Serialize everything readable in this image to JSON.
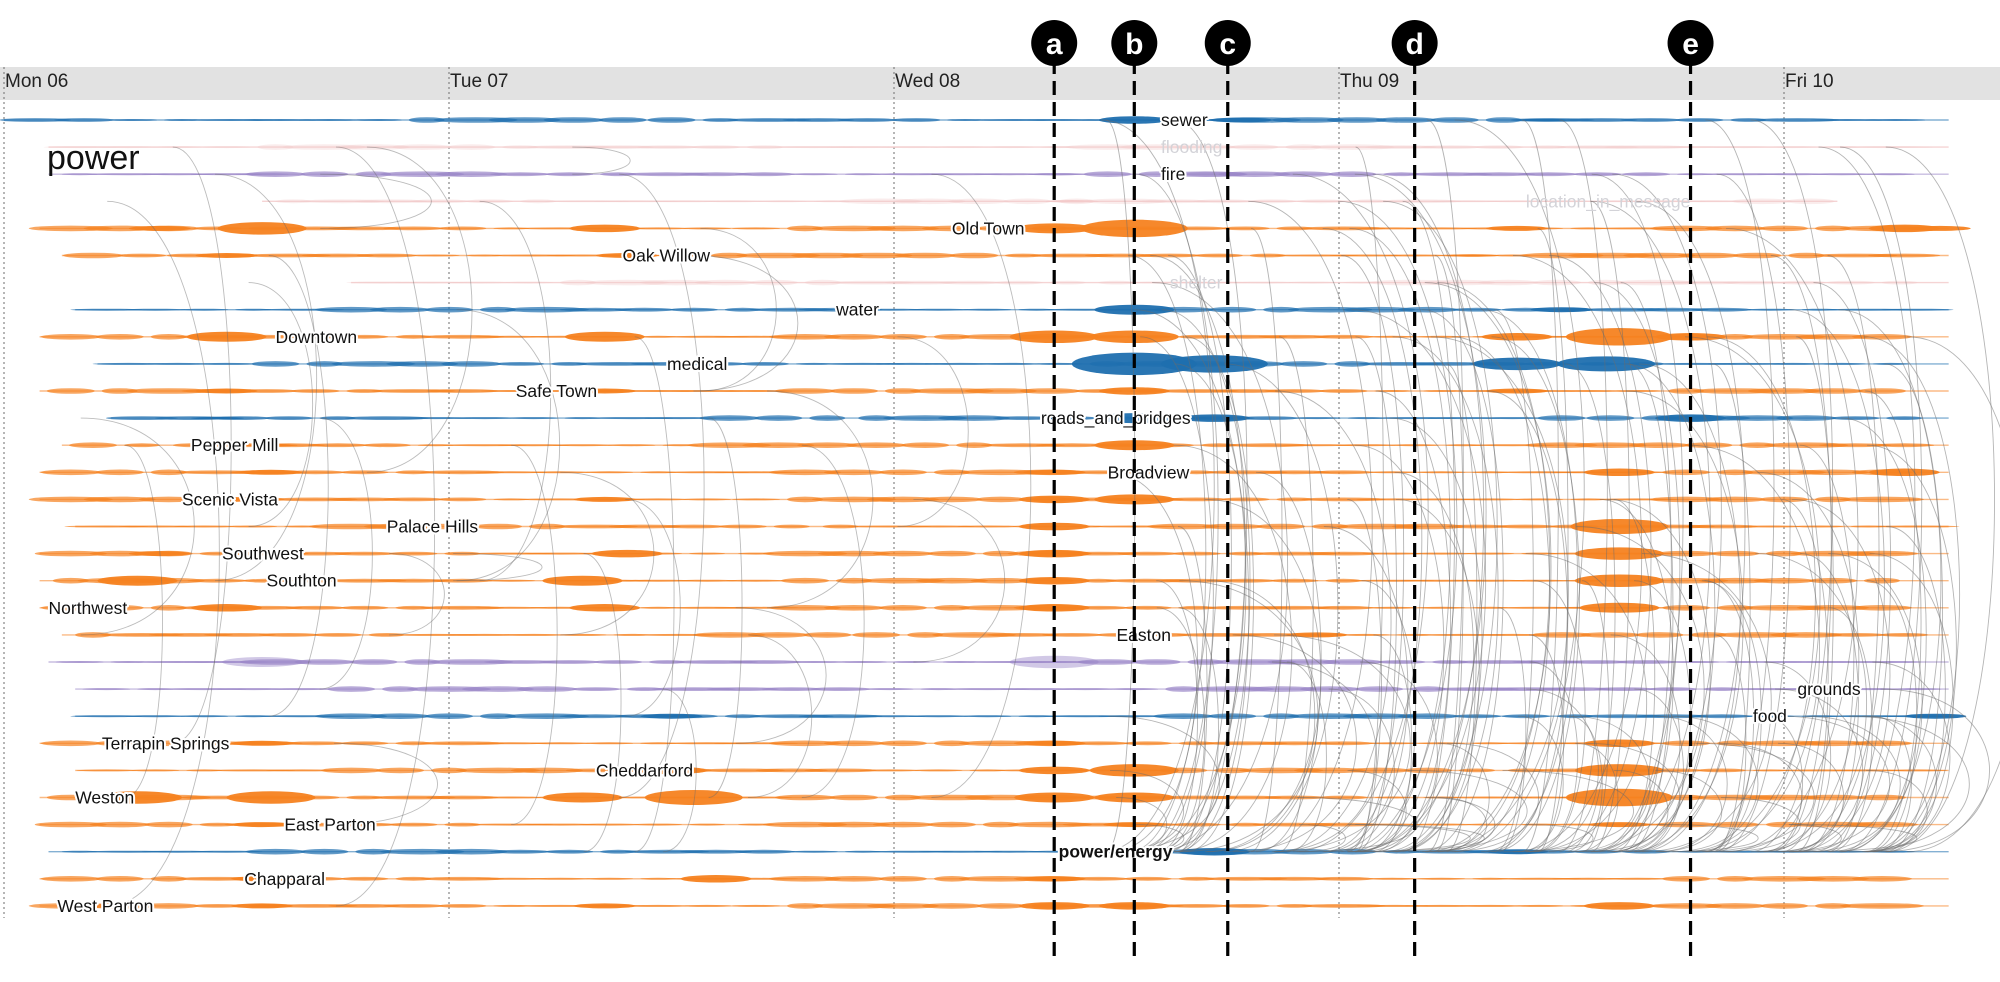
{
  "chart_data": {
    "type": "timeline",
    "title": "power",
    "days": [
      "Mon 06",
      "Tue 07",
      "Wed 08",
      "Thu 09",
      "Fri 10"
    ],
    "colors": {
      "location": "#f58220",
      "topic": "#1f6faf",
      "other": "#9a86c8",
      "faded": "#f2c9c9",
      "arc": "#6b6b6b",
      "header_band": "#e2e2e2",
      "marker": "#000000"
    },
    "event_markers": [
      {
        "label": "a",
        "day": 2.36
      },
      {
        "label": "b",
        "day": 2.54
      },
      {
        "label": "c",
        "day": 2.75
      },
      {
        "label": "d",
        "day": 3.17
      },
      {
        "label": "e",
        "day": 3.79
      }
    ],
    "rows": [
      {
        "label": "sewer",
        "kind": "topic",
        "label_day": 2.6,
        "start": 0.0,
        "end": 4.37,
        "peaks": [
          [
            2.54,
            3
          ],
          [
            2.78,
            2
          ],
          [
            3.46,
            1
          ]
        ]
      },
      {
        "label": "flooding",
        "kind": "faded",
        "label_day": 2.6,
        "start": 0.1,
        "end": 4.37,
        "peaks": []
      },
      {
        "label": "fire",
        "kind": "other",
        "label_day": 2.6,
        "start": 0.1,
        "end": 4.37,
        "peaks": [
          [
            0.58,
            1
          ],
          [
            2.36,
            1
          ],
          [
            2.72,
            2
          ]
        ]
      },
      {
        "label": "location_in_message",
        "kind": "faded",
        "label_day": 3.42,
        "start": 0.58,
        "end": 4.12,
        "peaks": [
          [
            2.4,
            1
          ]
        ]
      },
      {
        "label": "Old Town",
        "kind": "location",
        "label_day": 2.13,
        "start": 0.08,
        "end": 4.37,
        "peaks": [
          [
            0.35,
            2
          ],
          [
            0.58,
            5
          ],
          [
            1.35,
            3
          ],
          [
            2.36,
            4
          ],
          [
            2.54,
            7
          ],
          [
            3.4,
            2
          ],
          [
            4.27,
            3
          ],
          [
            4.35,
            2
          ]
        ]
      },
      {
        "label": "Oak Willow",
        "kind": "location",
        "label_day": 1.39,
        "start": 0.13,
        "end": 4.37,
        "peaks": [
          [
            0.5,
            2
          ],
          [
            1.4,
            2
          ],
          [
            3.3,
            1
          ]
        ]
      },
      {
        "label": "shelter",
        "kind": "faded",
        "label_day": 2.62,
        "start": 0.78,
        "end": 4.37,
        "peaks": []
      },
      {
        "label": "water",
        "kind": "topic",
        "label_day": 1.87,
        "start": 0.16,
        "end": 4.37,
        "peaks": [
          [
            2.54,
            4
          ],
          [
            3.5,
            2
          ]
        ]
      },
      {
        "label": "Downtown",
        "kind": "location",
        "label_day": 0.61,
        "start": 0.08,
        "end": 4.37,
        "peaks": [
          [
            0.5,
            4
          ],
          [
            1.35,
            4
          ],
          [
            2.36,
            5
          ],
          [
            2.54,
            5
          ],
          [
            3.4,
            3
          ],
          [
            3.63,
            7
          ],
          [
            3.79,
            3
          ]
        ]
      },
      {
        "label": "medical",
        "kind": "topic",
        "label_day": 1.49,
        "start": 0.21,
        "end": 4.37,
        "peaks": [
          [
            2.54,
            9
          ],
          [
            2.72,
            7
          ],
          [
            3.4,
            5
          ],
          [
            3.6,
            6
          ]
        ]
      },
      {
        "label": "Safe Town",
        "kind": "location",
        "label_day": 1.15,
        "start": 0.08,
        "end": 4.37,
        "peaks": [
          [
            0.5,
            2
          ],
          [
            1.35,
            2
          ],
          [
            2.54,
            3
          ],
          [
            3.4,
            2
          ]
        ]
      },
      {
        "label": "roads_and_bridges",
        "kind": "topic",
        "label_day": 2.33,
        "start": 0.24,
        "end": 4.37,
        "peaks": [
          [
            0.48,
            1
          ],
          [
            2.54,
            4
          ],
          [
            2.72,
            3
          ],
          [
            3.79,
            3
          ]
        ]
      },
      {
        "label": "Pepper Mill",
        "kind": "location",
        "label_day": 0.42,
        "start": 0.13,
        "end": 4.37,
        "peaks": [
          [
            0.6,
            1
          ],
          [
            2.54,
            4
          ]
        ]
      },
      {
        "label": "Broadview",
        "kind": "location",
        "label_day": 2.48,
        "start": 0.08,
        "end": 4.37,
        "peaks": [
          [
            0.6,
            2
          ],
          [
            2.36,
            2
          ],
          [
            3.63,
            3
          ],
          [
            4.27,
            3
          ]
        ]
      },
      {
        "label": "Scenic Vista",
        "kind": "location",
        "label_day": 0.4,
        "start": 0.08,
        "end": 4.37,
        "peaks": [
          [
            0.5,
            2
          ],
          [
            1.35,
            2
          ],
          [
            2.36,
            3
          ],
          [
            2.54,
            4
          ]
        ]
      },
      {
        "label": "Palace Hills",
        "kind": "location",
        "label_day": 0.86,
        "start": 0.16,
        "end": 4.37,
        "peaks": [
          [
            2.36,
            3
          ],
          [
            3.63,
            6
          ]
        ]
      },
      {
        "label": "Southwest",
        "kind": "location",
        "label_day": 0.49,
        "start": 0.08,
        "end": 4.37,
        "peaks": [
          [
            0.35,
            2
          ],
          [
            1.4,
            3
          ],
          [
            2.36,
            3
          ],
          [
            3.63,
            5
          ]
        ]
      },
      {
        "label": "Southton",
        "kind": "location",
        "label_day": 0.59,
        "start": 0.08,
        "end": 4.37,
        "peaks": [
          [
            0.3,
            4
          ],
          [
            1.3,
            4
          ],
          [
            2.36,
            3
          ],
          [
            3.63,
            5
          ]
        ]
      },
      {
        "label": "Northwest",
        "kind": "location",
        "label_day": 0.1,
        "start": 0.08,
        "end": 4.37,
        "peaks": [
          [
            0.5,
            3
          ],
          [
            1.35,
            3
          ],
          [
            2.36,
            3
          ],
          [
            3.63,
            4
          ]
        ]
      },
      {
        "label": "Easton",
        "kind": "location",
        "label_day": 2.5,
        "start": 0.13,
        "end": 4.37,
        "peaks": [
          [
            2.95,
            2
          ]
        ]
      },
      {
        "label": "",
        "kind": "other",
        "label_day": 0.0,
        "start": 0.1,
        "end": 4.37,
        "peaks": [
          [
            0.58,
            4
          ],
          [
            2.36,
            5
          ]
        ]
      },
      {
        "label": "grounds",
        "kind": "other",
        "label_day": 4.03,
        "start": 0.16,
        "end": 4.37,
        "peaks": []
      },
      {
        "label": "food",
        "kind": "topic",
        "label_day": 3.93,
        "start": 0.16,
        "end": 4.37,
        "peaks": [
          [
            1.5,
            2
          ],
          [
            4.34,
            2
          ]
        ]
      },
      {
        "label": "Terrapin Springs",
        "kind": "location",
        "label_day": 0.22,
        "start": 0.08,
        "end": 4.37,
        "peaks": [
          [
            0.58,
            2
          ],
          [
            2.36,
            2
          ],
          [
            3.63,
            3
          ]
        ]
      },
      {
        "label": "Cheddarford",
        "kind": "location",
        "label_day": 1.33,
        "start": 0.16,
        "end": 4.37,
        "peaks": [
          [
            1.5,
            3
          ],
          [
            2.36,
            3
          ],
          [
            2.54,
            5
          ],
          [
            3.63,
            5
          ]
        ]
      },
      {
        "label": "Weston",
        "kind": "location",
        "label_day": 0.16,
        "start": 0.08,
        "end": 4.37,
        "peaks": [
          [
            0.3,
            5
          ],
          [
            0.6,
            5
          ],
          [
            1.3,
            4
          ],
          [
            1.55,
            6
          ],
          [
            2.36,
            4
          ],
          [
            2.54,
            4
          ],
          [
            3.63,
            7
          ]
        ]
      },
      {
        "label": "East Parton",
        "kind": "location",
        "label_day": 0.63,
        "start": 0.08,
        "end": 4.37,
        "peaks": [
          [
            0.58,
            2
          ],
          [
            2.54,
            2
          ],
          [
            3.63,
            2
          ]
        ]
      },
      {
        "label": "power/energy",
        "kind": "topic",
        "label_day": 2.37,
        "start": 0.1,
        "end": 4.37,
        "peaks": [
          [
            2.5,
            3
          ],
          [
            2.72,
            3
          ],
          [
            3.4,
            2
          ]
        ]
      },
      {
        "label": "Chapparal",
        "kind": "location",
        "label_day": 0.54,
        "start": 0.08,
        "end": 4.37,
        "peaks": [
          [
            0.58,
            2
          ],
          [
            1.6,
            3
          ],
          [
            2.36,
            2
          ]
        ]
      },
      {
        "label": "West Parton",
        "kind": "location",
        "label_day": 0.12,
        "start": 0.08,
        "end": 4.37,
        "peaks": [
          [
            0.58,
            2
          ],
          [
            1.35,
            2
          ],
          [
            2.36,
            3
          ],
          [
            2.54,
            3
          ],
          [
            3.63,
            3
          ]
        ]
      }
    ]
  }
}
